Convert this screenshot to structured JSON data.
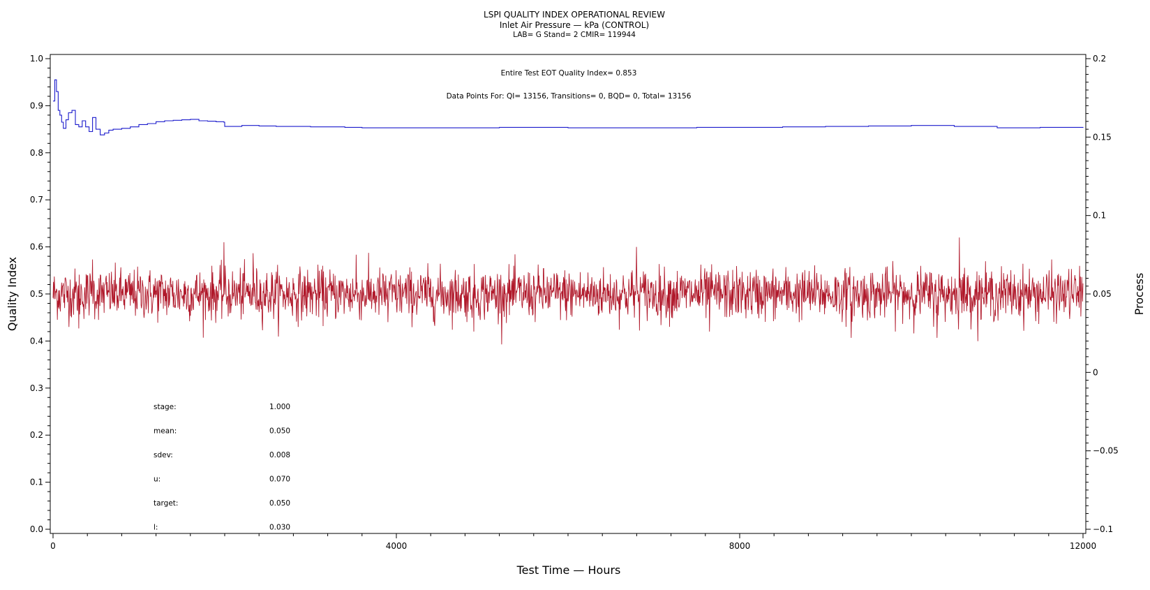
{
  "chart_data": {
    "type": "line",
    "title": "LSPI QUALITY INDEX OPERATIONAL REVIEW",
    "subtitle": "Inlet Air Pressure — kPa (CONTROL)",
    "subsubtitle": "LAB= G Stand= 2 CMIR= 119944",
    "xlabel": "Test Time — Hours",
    "ylabel_left": "Quality Index",
    "ylabel_right": "Process",
    "xlim": [
      0,
      12000
    ],
    "ylim_left": [
      0.0,
      1.0
    ],
    "ylim_right": [
      -0.1,
      0.2
    ],
    "x_ticks": [
      "0",
      "4000",
      "8000",
      "12000"
    ],
    "y_left_ticks": [
      "0.0",
      "0.1",
      "0.2",
      "0.3",
      "0.4",
      "0.5",
      "0.6",
      "0.7",
      "0.8",
      "0.9",
      "1.0"
    ],
    "y_right_ticks": [
      "−0.1",
      "−0.05",
      "0",
      "0.05",
      "0.1",
      "0.15",
      "0.2"
    ],
    "annotations": {
      "eot": "Entire Test EOT Quality Index=   0.853",
      "points": "Data Points For: QI= 13156, Transitions=     0, BQD=     0, Total= 13156"
    },
    "stats": [
      {
        "label": "stage:",
        "value": "1.000"
      },
      {
        "label": "mean:",
        "value": "0.050"
      },
      {
        "label": "sdev:",
        "value": "0.008"
      },
      {
        "label": "u:",
        "value": "0.070"
      },
      {
        "label": "target:",
        "value": "0.050"
      },
      {
        "label": "l:",
        "value": "0.030"
      }
    ],
    "series": [
      {
        "axis": "left",
        "color": "#1a1acc",
        "x": [
          0,
          20,
          40,
          60,
          80,
          100,
          120,
          150,
          180,
          220,
          260,
          300,
          340,
          380,
          420,
          460,
          500,
          550,
          600,
          650,
          700,
          800,
          900,
          1000,
          1100,
          1200,
          1300,
          1400,
          1500,
          1600,
          1700,
          1800,
          1900,
          1990,
          2000,
          2200,
          2400,
          2600,
          2800,
          3000,
          3200,
          3400,
          3600,
          3800,
          4000,
          4300,
          4600,
          4900,
          5200,
          5500,
          6000,
          6500,
          7000,
          7500,
          8000,
          8500,
          9000,
          9500,
          10000,
          10500,
          11000,
          11500,
          12000
        ],
        "y": [
          0.91,
          0.955,
          0.93,
          0.89,
          0.88,
          0.865,
          0.852,
          0.87,
          0.885,
          0.89,
          0.86,
          0.855,
          0.868,
          0.855,
          0.845,
          0.875,
          0.85,
          0.838,
          0.842,
          0.848,
          0.85,
          0.852,
          0.855,
          0.86,
          0.862,
          0.866,
          0.868,
          0.869,
          0.87,
          0.871,
          0.868,
          0.867,
          0.866,
          0.865,
          0.856,
          0.858,
          0.857,
          0.856,
          0.856,
          0.855,
          0.855,
          0.854,
          0.853,
          0.853,
          0.853,
          0.853,
          0.853,
          0.853,
          0.854,
          0.854,
          0.853,
          0.853,
          0.853,
          0.854,
          0.854,
          0.855,
          0.856,
          0.857,
          0.858,
          0.856,
          0.853,
          0.854,
          0.853
        ]
      },
      {
        "axis": "right",
        "color": "#b0182a",
        "generator": {
          "count": 2400,
          "mean": 0.05,
          "sdev": 0.008
        },
        "spikes": [
          [
            300,
            0.028
          ],
          [
            460,
            0.072
          ],
          [
            1990,
            0.083
          ],
          [
            2330,
            0.076
          ],
          [
            3530,
            0.075
          ],
          [
            6800,
            0.08
          ],
          [
            9300,
            0.022
          ],
          [
            10560,
            0.086
          ],
          [
            10300,
            0.022
          ],
          [
            4900,
            0.026
          ],
          [
            7650,
            0.026
          ],
          [
            3900,
            0.032
          ]
        ]
      }
    ]
  }
}
